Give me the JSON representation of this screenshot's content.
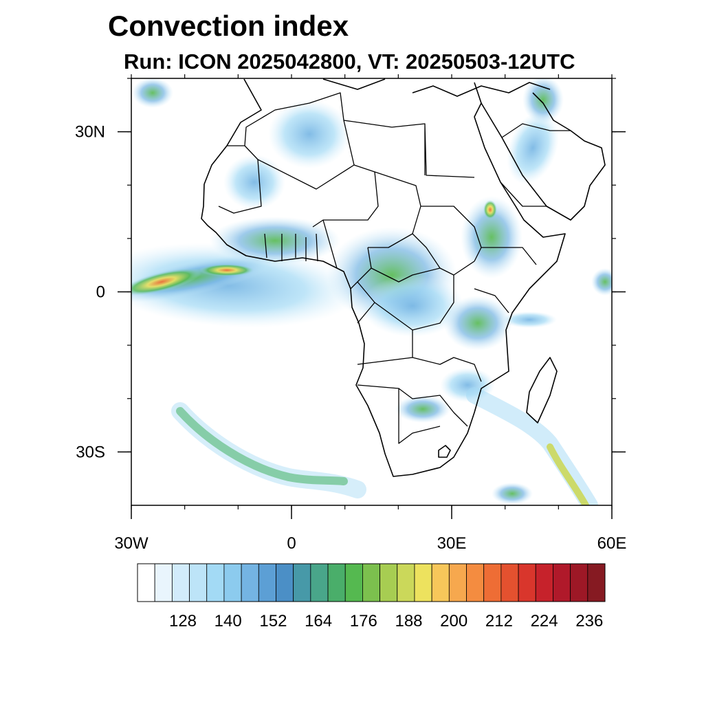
{
  "title": "Convection index",
  "subtitle": "Run: ICON 2025042800,  VT: 20250503-12UTC",
  "map": {
    "projection": "cylindrical equidistant",
    "lon_range": [
      -30,
      60
    ],
    "lat_range": [
      -40,
      40
    ],
    "lat_tick_labels": [
      {
        "lat": 30,
        "label": "30N"
      },
      {
        "lat": 0,
        "label": "0"
      },
      {
        "lat": -30,
        "label": "30S"
      }
    ],
    "lon_tick_labels": [
      {
        "lon": -30,
        "label": "30W"
      },
      {
        "lon": 0,
        "label": "0"
      },
      {
        "lon": 30,
        "label": "30E"
      },
      {
        "lon": 60,
        "label": "60E"
      }
    ],
    "features": [
      "coastlines",
      "country borders",
      "convection index shading"
    ]
  },
  "colorbar": {
    "orientation": "horizontal",
    "labels": [
      "128",
      "140",
      "152",
      "164",
      "176",
      "188",
      "200",
      "212",
      "224",
      "236"
    ],
    "colors": [
      "#ffffff",
      "#e9f5fd",
      "#d2ecfb",
      "#bde4f8",
      "#a3daf5",
      "#8ccbee",
      "#74b4e3",
      "#5c9fd5",
      "#4b8fc6",
      "#4799a8",
      "#49a68a",
      "#4aae6a",
      "#55b950",
      "#7cc04e",
      "#a7cd52",
      "#cbd85a",
      "#ede25e",
      "#f7c75a",
      "#f6a84e",
      "#f48c40",
      "#ee6d35",
      "#e4512f",
      "#d9362c",
      "#c6222b",
      "#b0192a",
      "#9d1826",
      "#861a22"
    ]
  }
}
